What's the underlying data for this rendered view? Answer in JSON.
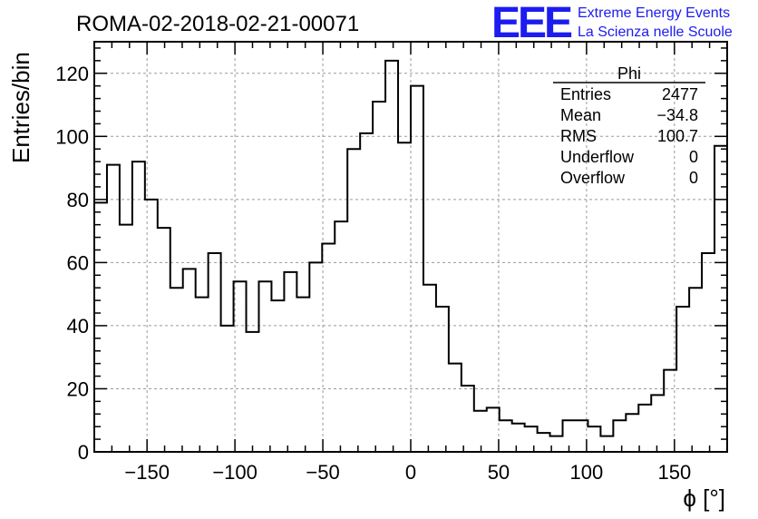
{
  "title": "ROMA-02-2018-02-21-00071",
  "logo": {
    "mark": "EEE",
    "line1": "Extreme Energy Events",
    "line2": "La Scienza nelle Scuole",
    "color": "#1c1cf0"
  },
  "stats_box": {
    "title": "Phi",
    "rows": [
      {
        "label": "Entries",
        "value": "2477"
      },
      {
        "label": "Mean",
        "value": "−34.8"
      },
      {
        "label": "RMS",
        "value": "100.7"
      },
      {
        "label": "Underflow",
        "value": "0"
      },
      {
        "label": "Overflow",
        "value": "0"
      }
    ]
  },
  "chart_data": {
    "type": "histogram",
    "xlabel": "ϕ [°]",
    "ylabel": "Entries/bin",
    "xlim": [
      -180,
      180
    ],
    "ylim": [
      0,
      130
    ],
    "grid": true,
    "bin_width": 7.2,
    "x_ticks": [
      -150,
      -100,
      -50,
      0,
      50,
      100,
      150
    ],
    "x_tick_labels": [
      "−150",
      "−100",
      "−50",
      "0",
      "50",
      "100",
      "150"
    ],
    "y_ticks": [
      0,
      20,
      40,
      60,
      80,
      100,
      120
    ],
    "y_tick_labels": [
      "0",
      "20",
      "40",
      "60",
      "80",
      "100",
      "120"
    ],
    "values": [
      79,
      91,
      72,
      92,
      80,
      71,
      52,
      58,
      49,
      63,
      40,
      54,
      38,
      54,
      48,
      57,
      49,
      60,
      66,
      73,
      96,
      101,
      111,
      124,
      98,
      116,
      53,
      46,
      28,
      21,
      13,
      14,
      10,
      9,
      8,
      6,
      5,
      10,
      10,
      8,
      5,
      10,
      12,
      15,
      18,
      26,
      46,
      52,
      63,
      97
    ],
    "line_color": "#000000"
  }
}
